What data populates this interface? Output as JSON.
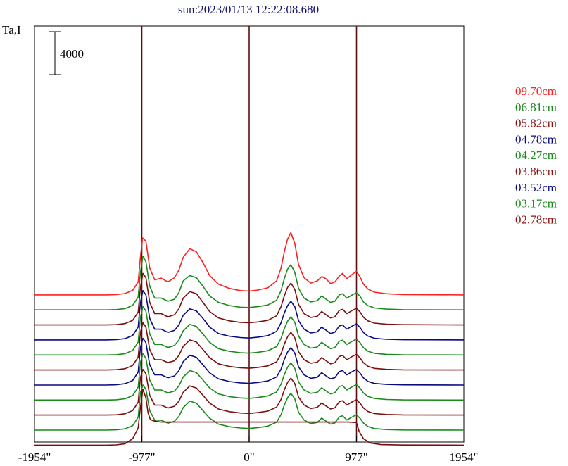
{
  "chart_data": {
    "type": "line",
    "title": "sun:2023/01/13 12:22:08.680",
    "ylabel": "Ta,I",
    "scale_bar_label": "4000",
    "scale_bar_value": 4000,
    "xlim": [
      -1954,
      1954
    ],
    "x_ticks": [
      -1954,
      -977,
      0,
      977,
      1954
    ],
    "x_tick_labels": [
      "-1954\"",
      "-977\"",
      "0\"",
      "977\"",
      "1954\""
    ],
    "vertical_lines": [
      -977,
      0,
      977
    ],
    "colors": {
      "axes": "#000000",
      "vline": "#5a0f0f"
    },
    "stack_offset": 1400,
    "series": [
      {
        "name": "09.70cm",
        "color": "#ff2020",
        "baseline": 12600,
        "x": [
          -1954,
          -1300,
          -1210,
          -1130,
          -1060,
          -1010,
          -990,
          -970,
          -940,
          -905,
          -860,
          -800,
          -740,
          -680,
          -640,
          -600,
          -540,
          -480,
          -420,
          -360,
          -280,
          -180,
          -80,
          0,
          80,
          170,
          250,
          290,
          320,
          350,
          380,
          415,
          450,
          500,
          560,
          620,
          660,
          700,
          740,
          780,
          820,
          850,
          890,
          930,
          977,
          1010,
          1040,
          1080,
          1140,
          1250,
          1400,
          1954
        ],
        "y": [
          0,
          0,
          25,
          120,
          420,
          1200,
          3500,
          5300,
          5000,
          2500,
          1400,
          1550,
          1200,
          1600,
          2300,
          3500,
          4300,
          4000,
          3000,
          1800,
          1000,
          600,
          400,
          350,
          450,
          650,
          1300,
          2500,
          4000,
          5200,
          5800,
          4800,
          2800,
          1600,
          1100,
          1300,
          1700,
          1500,
          1050,
          1200,
          1750,
          2000,
          1500,
          1850,
          2200,
          1650,
          1000,
          550,
          250,
          100,
          30,
          0
        ]
      },
      {
        "name": "06.81cm",
        "color": "#1a8a1a",
        "baseline": 11200,
        "x": [
          -1954,
          -1300,
          -1210,
          -1130,
          -1060,
          -1010,
          -990,
          -967,
          -940,
          -905,
          -860,
          -800,
          -740,
          -680,
          -640,
          -600,
          -540,
          -480,
          -420,
          -360,
          -280,
          -180,
          -80,
          0,
          80,
          170,
          250,
          290,
          320,
          350,
          380,
          415,
          450,
          500,
          560,
          620,
          660,
          700,
          740,
          780,
          820,
          850,
          890,
          930,
          977,
          1010,
          1040,
          1080,
          1140,
          1250,
          1400,
          1954
        ],
        "y": [
          0,
          0,
          25,
          120,
          420,
          1200,
          3500,
          5000,
          4500,
          2200,
          1100,
          1100,
          800,
          1000,
          1600,
          2700,
          3200,
          3000,
          2200,
          1300,
          700,
          400,
          250,
          220,
          300,
          450,
          900,
          1800,
          2900,
          3800,
          4200,
          3500,
          2000,
          1100,
          750,
          850,
          1300,
          1000,
          700,
          800,
          1400,
          1500,
          1100,
          1350,
          1600,
          1250,
          750,
          400,
          180,
          70,
          20,
          0
        ]
      },
      {
        "name": "05.82cm",
        "color": "#7a0e0e",
        "baseline": 9800,
        "x": [
          -1954,
          -1300,
          -1210,
          -1130,
          -1060,
          -1010,
          -990,
          -967,
          -940,
          -905,
          -860,
          -800,
          -740,
          -680,
          -640,
          -600,
          -540,
          -480,
          -420,
          -360,
          -280,
          -180,
          -80,
          0,
          80,
          170,
          250,
          290,
          320,
          350,
          380,
          415,
          450,
          500,
          560,
          620,
          660,
          700,
          740,
          780,
          820,
          850,
          890,
          930,
          977,
          1010,
          1040,
          1080,
          1140,
          1250,
          1400,
          1954
        ],
        "y": [
          0,
          0,
          25,
          120,
          420,
          1200,
          3500,
          4800,
          4400,
          2100,
          1050,
          1050,
          750,
          950,
          1500,
          2500,
          3100,
          2900,
          2100,
          1250,
          650,
          380,
          240,
          200,
          280,
          420,
          850,
          1700,
          2700,
          3500,
          3900,
          3300,
          1900,
          1050,
          700,
          800,
          1250,
          950,
          650,
          760,
          1350,
          1450,
          1050,
          1300,
          1550,
          1200,
          720,
          380,
          170,
          65,
          20,
          0
        ]
      },
      {
        "name": "04.78cm",
        "color": "#0a0a80",
        "baseline": 8400,
        "x": [
          -1954,
          -1300,
          -1210,
          -1130,
          -1060,
          -1010,
          -990,
          -967,
          -940,
          -905,
          -860,
          -800,
          -740,
          -680,
          -640,
          -600,
          -540,
          -480,
          -420,
          -360,
          -280,
          -180,
          -80,
          0,
          80,
          170,
          250,
          290,
          320,
          350,
          380,
          415,
          450,
          500,
          560,
          620,
          660,
          700,
          740,
          780,
          820,
          850,
          890,
          930,
          977,
          1010,
          1040,
          1080,
          1140,
          1250,
          1400,
          1954
        ],
        "y": [
          0,
          0,
          25,
          120,
          420,
          1200,
          3500,
          4600,
          4200,
          2000,
          1000,
          1000,
          700,
          900,
          1400,
          2300,
          2900,
          2700,
          2000,
          1200,
          600,
          350,
          220,
          180,
          260,
          400,
          800,
          1600,
          2500,
          3200,
          3600,
          3100,
          1800,
          1000,
          650,
          750,
          1200,
          900,
          600,
          720,
          1300,
          1400,
          1000,
          1250,
          1500,
          1150,
          700,
          360,
          160,
          60,
          18,
          0
        ]
      },
      {
        "name": "04.27cm",
        "color": "#1a8a1a",
        "baseline": 7000,
        "x": [
          -1954,
          -1300,
          -1210,
          -1130,
          -1060,
          -1010,
          -990,
          -967,
          -940,
          -905,
          -860,
          -800,
          -740,
          -680,
          -640,
          -600,
          -540,
          -480,
          -420,
          -360,
          -280,
          -180,
          -80,
          0,
          80,
          170,
          250,
          290,
          320,
          350,
          380,
          415,
          450,
          500,
          560,
          620,
          660,
          700,
          740,
          780,
          820,
          850,
          890,
          930,
          977,
          1010,
          1040,
          1080,
          1140,
          1250,
          1400,
          1954
        ],
        "y": [
          0,
          0,
          25,
          120,
          420,
          1200,
          3500,
          4500,
          4100,
          1950,
          980,
          980,
          690,
          880,
          1380,
          2250,
          2850,
          2650,
          1950,
          1180,
          590,
          340,
          210,
          170,
          250,
          390,
          780,
          1550,
          2450,
          3150,
          3550,
          3050,
          1750,
          980,
          640,
          740,
          1180,
          880,
          590,
          700,
          1280,
          1380,
          980,
          1230,
          1480,
          1130,
          690,
          350,
          155,
          58,
          17,
          0
        ]
      },
      {
        "name": "03.86cm",
        "color": "#7a0e0e",
        "baseline": 5600,
        "x": [
          -1954,
          -1300,
          -1210,
          -1130,
          -1060,
          -1010,
          -990,
          -967,
          -940,
          -905,
          -860,
          -800,
          -740,
          -680,
          -640,
          -600,
          -540,
          -480,
          -420,
          -360,
          -280,
          -180,
          -80,
          0,
          80,
          170,
          250,
          290,
          320,
          350,
          380,
          415,
          450,
          500,
          560,
          620,
          660,
          700,
          740,
          780,
          820,
          850,
          890,
          930,
          977,
          1010,
          1040,
          1080,
          1140,
          1250,
          1400,
          1954
        ],
        "y": [
          0,
          0,
          25,
          120,
          420,
          1200,
          3500,
          4400,
          4000,
          1900,
          960,
          960,
          680,
          860,
          1350,
          2200,
          2800,
          2600,
          1900,
          1150,
          580,
          330,
          205,
          165,
          245,
          380,
          760,
          1500,
          2400,
          3100,
          3500,
          3000,
          1700,
          960,
          630,
          730,
          1160,
          860,
          580,
          690,
          1260,
          1360,
          960,
          1210,
          1460,
          1110,
          680,
          345,
          150,
          56,
          16,
          0
        ]
      },
      {
        "name": "03.52cm",
        "color": "#0a0a80",
        "baseline": 4200,
        "x": [
          -1954,
          -1300,
          -1210,
          -1130,
          -1060,
          -1010,
          -990,
          -967,
          -940,
          -905,
          -860,
          -800,
          -740,
          -680,
          -640,
          -600,
          -540,
          -480,
          -420,
          -360,
          -280,
          -180,
          -80,
          0,
          80,
          170,
          250,
          290,
          320,
          350,
          380,
          415,
          450,
          500,
          560,
          620,
          660,
          700,
          740,
          780,
          820,
          850,
          890,
          930,
          977,
          1010,
          1040,
          1080,
          1140,
          1250,
          1400,
          1954
        ],
        "y": [
          0,
          0,
          25,
          120,
          420,
          1200,
          3500,
          4350,
          3950,
          1880,
          950,
          950,
          670,
          850,
          1330,
          2180,
          2780,
          2580,
          1880,
          1140,
          575,
          325,
          200,
          160,
          240,
          375,
          750,
          1480,
          2380,
          3080,
          3480,
          2980,
          1690,
          950,
          625,
          725,
          1150,
          850,
          575,
          685,
          1250,
          1350,
          950,
          1200,
          1450,
          1100,
          675,
          340,
          148,
          55,
          16,
          0
        ]
      },
      {
        "name": "03.17cm",
        "color": "#1a8a1a",
        "baseline": 2800,
        "x": [
          -1954,
          -1300,
          -1210,
          -1130,
          -1060,
          -1010,
          -990,
          -967,
          -940,
          -905,
          -860,
          -800,
          -740,
          -680,
          -640,
          -600,
          -540,
          -480,
          -420,
          -360,
          -280,
          -180,
          -80,
          0,
          80,
          170,
          250,
          290,
          320,
          350,
          380,
          415,
          450,
          500,
          560,
          620,
          660,
          700,
          740,
          780,
          820,
          850,
          890,
          930,
          977,
          1010,
          1040,
          1080,
          1140,
          1250,
          1400,
          1954
        ],
        "y": [
          0,
          0,
          25,
          120,
          420,
          1200,
          3500,
          4300,
          3900,
          1860,
          940,
          940,
          660,
          840,
          1310,
          2150,
          2750,
          2550,
          1860,
          1130,
          570,
          320,
          198,
          158,
          238,
          372,
          745,
          1470,
          2360,
          3060,
          3460,
          2960,
          1680,
          945,
          620,
          720,
          1140,
          845,
          570,
          680,
          1245,
          1345,
          945,
          1195,
          1445,
          1095,
          670,
          338,
          146,
          54,
          15,
          0
        ]
      },
      {
        "name": "02.78cm",
        "color": "#7a0e0e",
        "baseline": 1400,
        "x": [
          -1954,
          -1300,
          -1210,
          -1130,
          -1060,
          -1010,
          -990,
          -967,
          -940,
          -905,
          -860,
          -800,
          -740,
          -680,
          -640,
          -600,
          -540,
          -480,
          -420,
          -360,
          -280,
          -180,
          -80,
          0,
          80,
          170,
          250,
          290,
          320,
          350,
          380,
          415,
          450,
          500,
          560,
          620,
          660,
          700,
          740,
          780,
          820,
          850,
          890,
          930,
          977,
          1010,
          1040,
          1080,
          1140,
          1250,
          1400,
          1954
        ],
        "y": [
          0,
          0,
          25,
          120,
          420,
          1200,
          3500,
          4250,
          3850,
          1840,
          930,
          930,
          650,
          830,
          1290,
          2120,
          2720,
          2520,
          1840,
          1120,
          565,
          318,
          196,
          156,
          236,
          370,
          740,
          1460,
          2340,
          3040,
          3440,
          2940,
          1670,
          940,
          615,
          715,
          1130,
          840,
          565,
          675,
          1240,
          1340,
          940,
          1190,
          1440,
          1090,
          665,
          336,
          144,
          53,
          15,
          0
        ]
      },
      {
        "color": "#1a8a1a",
        "baseline": 0,
        "x": [
          -1954,
          -1300,
          -1210,
          -1130,
          -1060,
          -1010,
          -990,
          -967,
          -940,
          -905,
          -860,
          -800,
          -740,
          -680,
          -640,
          -600,
          -540,
          -480,
          -420,
          -360,
          -280,
          -180,
          -80,
          0,
          80,
          170,
          250,
          290,
          320,
          350,
          380,
          415,
          450,
          500,
          560,
          620,
          660,
          700,
          740,
          780,
          820,
          850,
          890,
          930,
          977,
          1010,
          1040,
          1080,
          1140,
          1250,
          1400,
          1954
        ],
        "y": [
          0,
          0,
          25,
          120,
          420,
          1200,
          3500,
          4200,
          3800,
          1820,
          920,
          920,
          640,
          820,
          1270,
          2100,
          2700,
          2500,
          1820,
          1110,
          560,
          316,
          194,
          154,
          234,
          368,
          735,
          1450,
          2320,
          3020,
          3420,
          2920,
          1660,
          935,
          610,
          710,
          1120,
          835,
          560,
          670,
          1235,
          1335,
          935,
          1185,
          1435,
          1085,
          660,
          334,
          142,
          52,
          14,
          0
        ]
      },
      {
        "color": "#7a0e0e",
        "baseline": -1400,
        "x": [
          -1954,
          -1300,
          -1210,
          -1130,
          -1060,
          -1010,
          -990,
          -967,
          -940,
          -920,
          -900,
          -870,
          -840,
          -800,
          -760,
          -700,
          -600,
          -500,
          -300,
          0,
          300,
          600,
          900,
          977,
          1000,
          1040,
          1100,
          1200,
          1400,
          1954
        ],
        "y": [
          0,
          0,
          25,
          130,
          600,
          1600,
          3500,
          5200,
          4400,
          3000,
          2400,
          2250,
          2200,
          2150,
          2150,
          2150,
          2150,
          2150,
          2150,
          2150,
          2150,
          2150,
          2150,
          2100,
          1300,
          600,
          200,
          50,
          10,
          0
        ]
      }
    ]
  }
}
